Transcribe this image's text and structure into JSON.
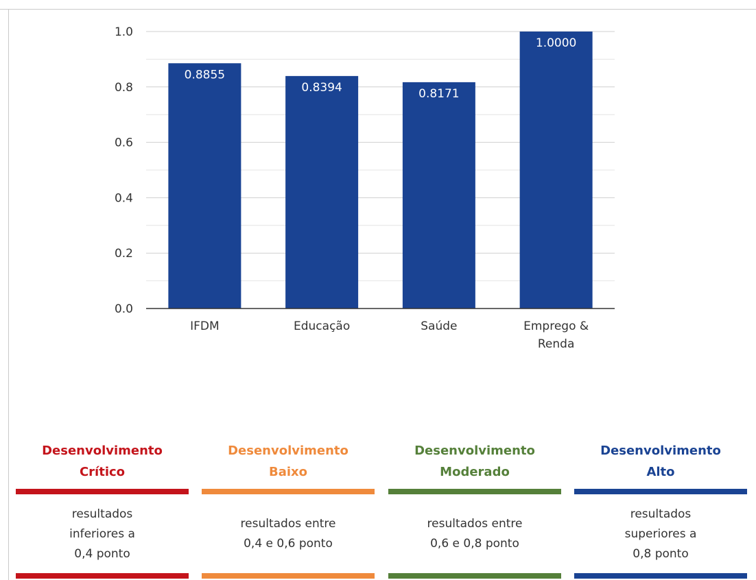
{
  "chart_data": {
    "type": "bar",
    "categories": [
      "IFDM",
      "Educação",
      "Saúde",
      "Emprego & Renda"
    ],
    "category_labels": [
      [
        "IFDM"
      ],
      [
        "Educação"
      ],
      [
        "Saúde"
      ],
      [
        "Emprego &",
        "Renda"
      ]
    ],
    "values": [
      0.8855,
      0.8394,
      0.8171,
      1.0
    ],
    "data_labels": [
      "0.8855",
      "0.8394",
      "0.8171",
      "1.0000"
    ],
    "yticks": [
      "0.0",
      "0.2",
      "0.4",
      "0.6",
      "0.8",
      "1.0"
    ],
    "ylim": [
      0,
      1
    ],
    "ytick_values": [
      0,
      0.2,
      0.4,
      0.6,
      0.8,
      1.0
    ],
    "grid": true,
    "bar_color": "#1a4393",
    "title": "",
    "xlabel": "",
    "ylabel": ""
  },
  "legend": [
    {
      "title": [
        "Desenvolvimento",
        "Crítico"
      ],
      "description": [
        "resultados",
        "inferiores a",
        "0,4 ponto"
      ],
      "color": "#c4141b"
    },
    {
      "title": [
        "Desenvolvimento",
        "Baixo"
      ],
      "description": [
        "resultados entre",
        "0,4 e 0,6 ponto"
      ],
      "color": "#ef8a3c"
    },
    {
      "title": [
        "Desenvolvimento",
        "Moderado"
      ],
      "description": [
        "resultados entre",
        "0,6 e 0,8 ponto"
      ],
      "color": "#55803a"
    },
    {
      "title": [
        "Desenvolvimento",
        "Alto"
      ],
      "description": [
        "resultados",
        "superiores a",
        "0,8 ponto"
      ],
      "color": "#1a4393"
    }
  ]
}
